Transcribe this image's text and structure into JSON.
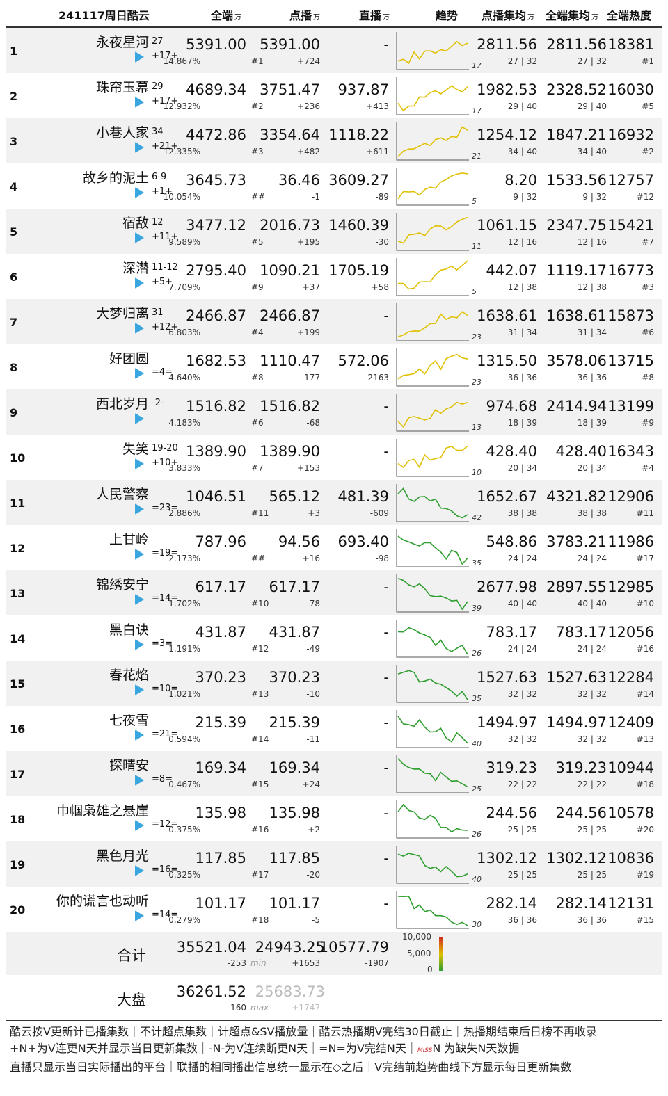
{
  "header": {
    "date_label": "241117周日酷云",
    "col_total": "全端",
    "col_vod": "点播",
    "col_live": "直播",
    "col_trend": "趋势",
    "col_vod_ep": "点播集均",
    "col_total_ep": "全端集均",
    "col_heat": "全端热度",
    "unit": "万"
  },
  "rows": [
    {
      "rank": "1",
      "title": "永夜星河",
      "eps": "27",
      "badge": "+17+",
      "total": "5391.00",
      "pct": "14.867%",
      "trank": "#1",
      "vod": "5391.00",
      "vod_d": "+724",
      "live": "-",
      "live_d": "",
      "vod_ep": "2811.56",
      "tot_ep": "2811.56",
      "heat": "18381",
      "vod_ep_sub": "27 | 32",
      "tot_ep_sub": "27 | 32",
      "heat_rank": "#1",
      "trend_lbl": "17"
    },
    {
      "rank": "2",
      "title": "珠帘玉幕",
      "eps": "29",
      "badge": "+17+",
      "total": "4689.34",
      "pct": "12.932%",
      "trank": "#2",
      "vod": "3751.47",
      "vod_d": "+236",
      "live": "937.87",
      "live_d": "+413",
      "vod_ep": "1982.53",
      "tot_ep": "2328.52",
      "heat": "16030",
      "vod_ep_sub": "29 | 40",
      "tot_ep_sub": "29 | 40",
      "heat_rank": "#5",
      "trend_lbl": "17"
    },
    {
      "rank": "3",
      "title": "小巷人家",
      "eps": "34",
      "badge": "+21+",
      "total": "4472.86",
      "pct": "12.335%",
      "trank": "#3",
      "vod": "3354.64",
      "vod_d": "+482",
      "live": "1118.22",
      "live_d": "+611",
      "vod_ep": "1254.12",
      "tot_ep": "1847.21",
      "heat": "16932",
      "vod_ep_sub": "34 | 40",
      "tot_ep_sub": "34 | 40",
      "heat_rank": "#2",
      "trend_lbl": "21"
    },
    {
      "rank": "4",
      "title": "故乡的泥土",
      "eps": "6-9",
      "badge": "+1+",
      "total": "3645.73",
      "pct": "10.054%",
      "trank": "##",
      "vod": "36.46",
      "vod_d": "-1",
      "live": "3609.27",
      "live_d": "-89",
      "vod_ep": "8.20",
      "tot_ep": "1533.56",
      "heat": "12757",
      "vod_ep_sub": "9 | 32",
      "tot_ep_sub": "9 | 32",
      "heat_rank": "#12",
      "trend_lbl": "5"
    },
    {
      "rank": "5",
      "title": "宿敌",
      "eps": "12",
      "badge": "+11+",
      "total": "3477.12",
      "pct": "9.589%",
      "trank": "#5",
      "vod": "2016.73",
      "vod_d": "+195",
      "live": "1460.39",
      "live_d": "-30",
      "vod_ep": "1061.15",
      "tot_ep": "2347.75",
      "heat": "15421",
      "vod_ep_sub": "12 | 16",
      "tot_ep_sub": "12 | 16",
      "heat_rank": "#7",
      "trend_lbl": "11"
    },
    {
      "rank": "6",
      "title": "深潜",
      "eps": "11-12",
      "badge": "+5+",
      "total": "2795.40",
      "pct": "7.709%",
      "trank": "#9",
      "vod": "1090.21",
      "vod_d": "+37",
      "live": "1705.19",
      "live_d": "+58",
      "vod_ep": "442.07",
      "tot_ep": "1119.17",
      "heat": "16773",
      "vod_ep_sub": "12 | 38",
      "tot_ep_sub": "12 | 38",
      "heat_rank": "#3",
      "trend_lbl": "5"
    },
    {
      "rank": "7",
      "title": "大梦归离",
      "eps": "31",
      "badge": "+12+",
      "total": "2466.87",
      "pct": "6.803%",
      "trank": "#4",
      "vod": "2466.87",
      "vod_d": "+199",
      "live": "-",
      "live_d": "",
      "vod_ep": "1638.61",
      "tot_ep": "1638.61",
      "heat": "15873",
      "vod_ep_sub": "31 | 34",
      "tot_ep_sub": "31 | 34",
      "heat_rank": "#6",
      "trend_lbl": "23"
    },
    {
      "rank": "8",
      "title": "好团圆",
      "eps": "",
      "badge": "=4=",
      "total": "1682.53",
      "pct": "4.640%",
      "trank": "#8",
      "vod": "1110.47",
      "vod_d": "-177",
      "live": "572.06",
      "live_d": "-2163",
      "vod_ep": "1315.50",
      "tot_ep": "3578.06",
      "heat": "13715",
      "vod_ep_sub": "36 | 36",
      "tot_ep_sub": "36 | 36",
      "heat_rank": "#8",
      "trend_lbl": "23"
    },
    {
      "rank": "9",
      "title": "西北岁月",
      "eps": "-2-",
      "badge": "",
      "total": "1516.82",
      "pct": "4.183%",
      "trank": "#6",
      "vod": "1516.82",
      "vod_d": "-68",
      "live": "-",
      "live_d": "",
      "vod_ep": "974.68",
      "tot_ep": "2414.94",
      "heat": "13199",
      "vod_ep_sub": "18 | 39",
      "tot_ep_sub": "18 | 39",
      "heat_rank": "#9",
      "trend_lbl": "13"
    },
    {
      "rank": "10",
      "title": "失笑",
      "eps": "19-20",
      "badge": "+10+",
      "total": "1389.90",
      "pct": "3.833%",
      "trank": "#7",
      "vod": "1389.90",
      "vod_d": "+153",
      "live": "-",
      "live_d": "",
      "vod_ep": "428.40",
      "tot_ep": "428.40",
      "heat": "16343",
      "vod_ep_sub": "20 | 34",
      "tot_ep_sub": "20 | 34",
      "heat_rank": "#4",
      "trend_lbl": "10"
    },
    {
      "rank": "11",
      "title": "人民警察",
      "eps": "",
      "badge": "=23=",
      "total": "1046.51",
      "pct": "2.886%",
      "trank": "#11",
      "vod": "565.12",
      "vod_d": "+3",
      "live": "481.39",
      "live_d": "-609",
      "vod_ep": "1652.67",
      "tot_ep": "4321.82",
      "heat": "12906",
      "vod_ep_sub": "38 | 38",
      "tot_ep_sub": "38 | 38",
      "heat_rank": "#11",
      "trend_lbl": "42"
    },
    {
      "rank": "12",
      "title": "上甘岭",
      "eps": "",
      "badge": "=19=",
      "total": "787.96",
      "pct": "2.173%",
      "trank": "##",
      "vod": "94.56",
      "vod_d": "+16",
      "live": "693.40",
      "live_d": "-98",
      "vod_ep": "548.86",
      "tot_ep": "3783.21",
      "heat": "11986",
      "vod_ep_sub": "24 | 24",
      "tot_ep_sub": "24 | 24",
      "heat_rank": "#17",
      "trend_lbl": "35"
    },
    {
      "rank": "13",
      "title": "锦绣安宁",
      "eps": "",
      "badge": "=14=",
      "total": "617.17",
      "pct": "1.702%",
      "trank": "#10",
      "vod": "617.17",
      "vod_d": "-78",
      "live": "-",
      "live_d": "",
      "vod_ep": "2677.98",
      "tot_ep": "2897.55",
      "heat": "12985",
      "vod_ep_sub": "40 | 40",
      "tot_ep_sub": "40 | 40",
      "heat_rank": "#10",
      "trend_lbl": "39"
    },
    {
      "rank": "14",
      "title": "黑白诀",
      "eps": "",
      "badge": "=3=",
      "total": "431.87",
      "pct": "1.191%",
      "trank": "#12",
      "vod": "431.87",
      "vod_d": "-49",
      "live": "-",
      "live_d": "",
      "vod_ep": "783.17",
      "tot_ep": "783.17",
      "heat": "12056",
      "vod_ep_sub": "24 | 24",
      "tot_ep_sub": "24 | 24",
      "heat_rank": "#16",
      "trend_lbl": "26"
    },
    {
      "rank": "15",
      "title": "春花焰",
      "eps": "",
      "badge": "=10=",
      "total": "370.23",
      "pct": "1.021%",
      "trank": "#13",
      "vod": "370.23",
      "vod_d": "-10",
      "live": "-",
      "live_d": "",
      "vod_ep": "1527.63",
      "tot_ep": "1527.63",
      "heat": "12284",
      "vod_ep_sub": "32 | 32",
      "tot_ep_sub": "32 | 32",
      "heat_rank": "#14",
      "trend_lbl": "35"
    },
    {
      "rank": "16",
      "title": "七夜雪",
      "eps": "",
      "badge": "=21=",
      "total": "215.39",
      "pct": "0.594%",
      "trank": "#14",
      "vod": "215.39",
      "vod_d": "-11",
      "live": "-",
      "live_d": "",
      "vod_ep": "1494.97",
      "tot_ep": "1494.97",
      "heat": "12409",
      "vod_ep_sub": "32 | 32",
      "tot_ep_sub": "32 | 32",
      "heat_rank": "#13",
      "trend_lbl": "40"
    },
    {
      "rank": "17",
      "title": "探晴安",
      "eps": "",
      "badge": "=8=",
      "total": "169.34",
      "pct": "0.467%",
      "trank": "#15",
      "vod": "169.34",
      "vod_d": "+24",
      "live": "-",
      "live_d": "",
      "vod_ep": "319.23",
      "tot_ep": "319.23",
      "heat": "10944",
      "vod_ep_sub": "22 | 22",
      "tot_ep_sub": "22 | 22",
      "heat_rank": "#18",
      "trend_lbl": "25"
    },
    {
      "rank": "18",
      "title": "巾帼枭雄之悬崖",
      "eps": "",
      "badge": "=12=",
      "total": "135.98",
      "pct": "0.375%",
      "trank": "#16",
      "vod": "135.98",
      "vod_d": "+2",
      "live": "-",
      "live_d": "",
      "vod_ep": "244.56",
      "tot_ep": "244.56",
      "heat": "10578",
      "vod_ep_sub": "25 | 25",
      "tot_ep_sub": "25 | 25",
      "heat_rank": "#20",
      "trend_lbl": "26"
    },
    {
      "rank": "19",
      "title": "黑色月光",
      "eps": "",
      "badge": "=16=",
      "total": "117.85",
      "pct": "0.325%",
      "trank": "#17",
      "vod": "117.85",
      "vod_d": "-20",
      "live": "-",
      "live_d": "",
      "vod_ep": "1302.12",
      "tot_ep": "1302.12",
      "heat": "10836",
      "vod_ep_sub": "25 | 25",
      "tot_ep_sub": "25 | 25",
      "heat_rank": "#19",
      "trend_lbl": "40"
    },
    {
      "rank": "20",
      "title": "你的谎言也动听",
      "eps": "",
      "badge": "=14=",
      "total": "101.17",
      "pct": "0.279%",
      "trank": "#18",
      "vod": "101.17",
      "vod_d": "-5",
      "live": "-",
      "live_d": "",
      "vod_ep": "282.14",
      "tot_ep": "282.14",
      "heat": "12131",
      "vod_ep_sub": "36 | 36",
      "tot_ep_sub": "36 | 36",
      "heat_rank": "#15",
      "trend_lbl": "30"
    }
  ],
  "summary": {
    "label": "合计",
    "total": "35521.04",
    "total_d": "-253",
    "min_label": "min",
    "vod": "24943.25",
    "vod_d": "+1653",
    "live": "10577.79",
    "live_d": "-1907",
    "legend_hi": "10,000",
    "legend_mid": "5,000",
    "legend_lo": "0"
  },
  "market": {
    "label": "大盘",
    "total": "36261.52",
    "total_d": "-160",
    "max_label": "max",
    "vod": "25683.73",
    "vod_d": "+1747"
  },
  "footer": {
    "line1": "酷云按V更新计已播集数｜不计超点集数｜计超点&SV播放量｜酷云热播期V完结30日截止｜热播期结束后日榜不再收录",
    "line2a": "+N+为V连更N天并显示当日更新集数｜-N-为V连续断更N天｜=N=为V完结N天｜",
    "line2_miss": "MISS",
    "line2b": "N 为缺失N天数据",
    "line3": "直播只显示当日实际播出的平台｜联播的相同播出信息统一显示在◇之后｜V完结前趋势曲线下方显示每日更新集数"
  },
  "colors": {
    "row_alt": "#f1f1f1",
    "trend_green": "#2e9e2e",
    "trend_yellow": "#e0c000",
    "trend_red": "#d03020",
    "iqiyi": "#36b34a",
    "youku": "#3aa6e0",
    "mango": "#f08020"
  }
}
